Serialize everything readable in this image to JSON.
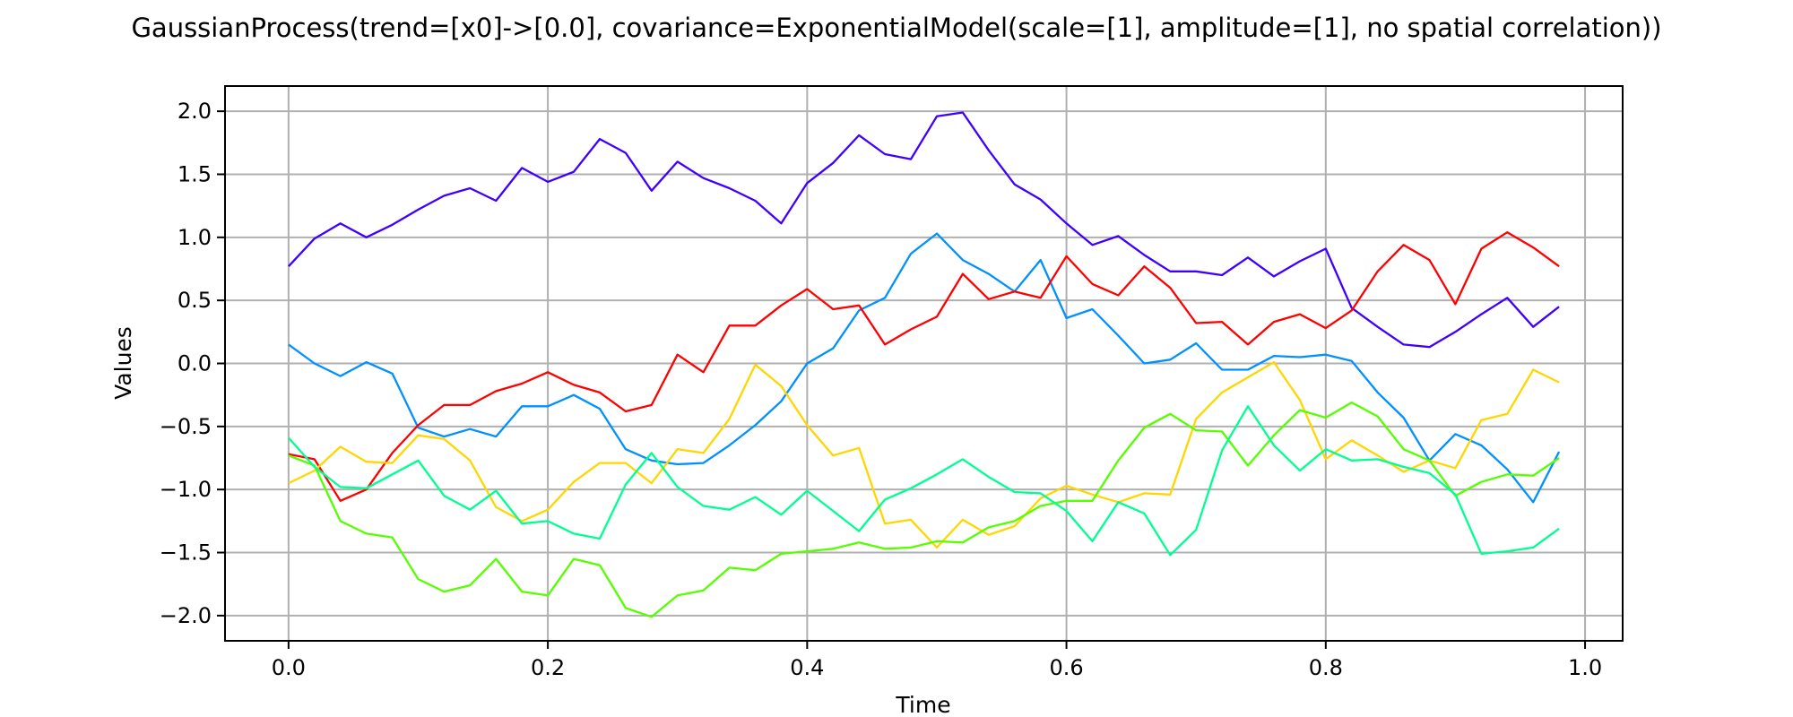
{
  "chart_data": {
    "type": "line",
    "title": "GaussianProcess(trend=[x0]->[0.0], covariance=ExponentialModel(scale=[1], amplitude=[1], no spatial correlation))",
    "xlabel": "Time",
    "ylabel": "Values",
    "xlim": [
      -0.049,
      1.029
    ],
    "ylim": [
      -2.2,
      2.2
    ],
    "xticks": [
      0.0,
      0.2,
      0.4,
      0.6,
      0.8,
      1.0
    ],
    "xtick_labels": [
      "0.0",
      "0.2",
      "0.4",
      "0.6",
      "0.8",
      "1.0"
    ],
    "yticks": [
      2.0,
      1.5,
      1.0,
      0.5,
      0.0,
      -0.5,
      -1.0,
      -1.5,
      -2.0
    ],
    "ytick_labels": [
      "2.0",
      "1.5",
      "1.0",
      "0.5",
      "0.0",
      "−0.5",
      "−1.0",
      "−1.5",
      "−2.0"
    ],
    "grid": true,
    "x": [
      0.0,
      0.02,
      0.04,
      0.06,
      0.08,
      0.1,
      0.12,
      0.14,
      0.16,
      0.18,
      0.2,
      0.22,
      0.24,
      0.26,
      0.28,
      0.3,
      0.32,
      0.34,
      0.36,
      0.38,
      0.4,
      0.42,
      0.44,
      0.46,
      0.48,
      0.5,
      0.52,
      0.54,
      0.56,
      0.58,
      0.6,
      0.62,
      0.64,
      0.66,
      0.68,
      0.7,
      0.72,
      0.74,
      0.76,
      0.78,
      0.8,
      0.82,
      0.84,
      0.86,
      0.88,
      0.9,
      0.92,
      0.94,
      0.96,
      0.98
    ],
    "series": [
      {
        "color": "#3f00ff",
        "values": [
          0.77,
          0.99,
          1.11,
          1.0,
          1.1,
          1.22,
          1.33,
          1.39,
          1.29,
          1.55,
          1.44,
          1.52,
          1.78,
          1.67,
          1.37,
          1.6,
          1.47,
          1.39,
          1.29,
          1.11,
          1.43,
          1.59,
          1.81,
          1.66,
          1.62,
          1.96,
          1.99,
          1.69,
          1.42,
          1.3,
          1.11,
          0.94,
          1.01,
          0.86,
          0.73,
          0.73,
          0.7,
          0.84,
          0.69,
          0.81,
          0.91,
          0.44,
          0.29,
          0.15,
          0.13,
          0.25,
          0.39,
          0.52,
          0.29,
          0.45
        ]
      },
      {
        "color": "#0091ff",
        "values": [
          0.15,
          0.0,
          -0.1,
          0.01,
          -0.08,
          -0.51,
          -0.58,
          -0.52,
          -0.58,
          -0.34,
          -0.34,
          -0.25,
          -0.36,
          -0.68,
          -0.77,
          -0.8,
          -0.79,
          -0.65,
          -0.49,
          -0.3,
          0.0,
          0.12,
          0.42,
          0.52,
          0.87,
          1.03,
          0.82,
          0.71,
          0.57,
          0.82,
          0.36,
          0.43,
          0.22,
          0.0,
          0.03,
          0.16,
          -0.05,
          -0.05,
          0.06,
          0.05,
          0.07,
          0.02,
          -0.23,
          -0.43,
          -0.77,
          -0.56,
          -0.65,
          -0.84,
          -1.1,
          -0.7
        ]
      },
      {
        "color": "#ff0000",
        "values": [
          -0.72,
          -0.76,
          -1.09,
          -1.0,
          -0.71,
          -0.49,
          -0.33,
          -0.33,
          -0.22,
          -0.16,
          -0.07,
          -0.17,
          -0.23,
          -0.38,
          -0.33,
          0.07,
          -0.07,
          0.3,
          0.3,
          0.46,
          0.59,
          0.43,
          0.46,
          0.15,
          0.27,
          0.37,
          0.71,
          0.51,
          0.57,
          0.52,
          0.85,
          0.63,
          0.54,
          0.77,
          0.6,
          0.32,
          0.33,
          0.15,
          0.33,
          0.39,
          0.28,
          0.42,
          0.73,
          0.94,
          0.82,
          0.47,
          0.91,
          1.04,
          0.92,
          0.77
        ]
      },
      {
        "color": "#ffd600",
        "values": [
          -0.95,
          -0.85,
          -0.66,
          -0.78,
          -0.79,
          -0.57,
          -0.6,
          -0.77,
          -1.14,
          -1.25,
          -1.16,
          -0.94,
          -0.79,
          -0.79,
          -0.95,
          -0.68,
          -0.71,
          -0.44,
          -0.01,
          -0.18,
          -0.49,
          -0.73,
          -0.67,
          -1.27,
          -1.24,
          -1.46,
          -1.24,
          -1.36,
          -1.29,
          -1.07,
          -0.97,
          -1.04,
          -1.1,
          -1.03,
          -1.04,
          -0.44,
          -0.23,
          -0.11,
          0.01,
          -0.29,
          -0.76,
          -0.61,
          -0.73,
          -0.86,
          -0.77,
          -0.83,
          -0.45,
          -0.4,
          -0.05,
          -0.15
        ]
      },
      {
        "color": "#55ff00",
        "values": [
          -0.73,
          -0.81,
          -1.25,
          -1.35,
          -1.38,
          -1.71,
          -1.81,
          -1.76,
          -1.55,
          -1.81,
          -1.84,
          -1.55,
          -1.6,
          -1.94,
          -2.01,
          -1.84,
          -1.8,
          -1.62,
          -1.64,
          -1.51,
          -1.49,
          -1.47,
          -1.42,
          -1.47,
          -1.46,
          -1.41,
          -1.42,
          -1.3,
          -1.25,
          -1.13,
          -1.09,
          -1.09,
          -0.77,
          -0.51,
          -0.4,
          -0.53,
          -0.54,
          -0.81,
          -0.57,
          -0.37,
          -0.43,
          -0.31,
          -0.42,
          -0.68,
          -0.77,
          -1.05,
          -0.94,
          -0.88,
          -0.89,
          -0.75
        ]
      },
      {
        "color": "#00ff91",
        "values": [
          -0.59,
          -0.82,
          -0.98,
          -0.99,
          -0.88,
          -0.77,
          -1.05,
          -1.16,
          -1.01,
          -1.27,
          -1.25,
          -1.35,
          -1.39,
          -0.96,
          -0.71,
          -0.98,
          -1.13,
          -1.16,
          -1.06,
          -1.2,
          -1.01,
          -1.17,
          -1.33,
          -1.08,
          -0.99,
          -0.88,
          -0.76,
          -0.9,
          -1.02,
          -1.03,
          -1.17,
          -1.41,
          -1.1,
          -1.19,
          -1.52,
          -1.32,
          -0.69,
          -0.34,
          -0.65,
          -0.85,
          -0.68,
          -0.77,
          -0.76,
          -0.82,
          -0.87,
          -1.04,
          -1.51,
          -1.49,
          -1.46,
          -1.31
        ]
      }
    ]
  }
}
